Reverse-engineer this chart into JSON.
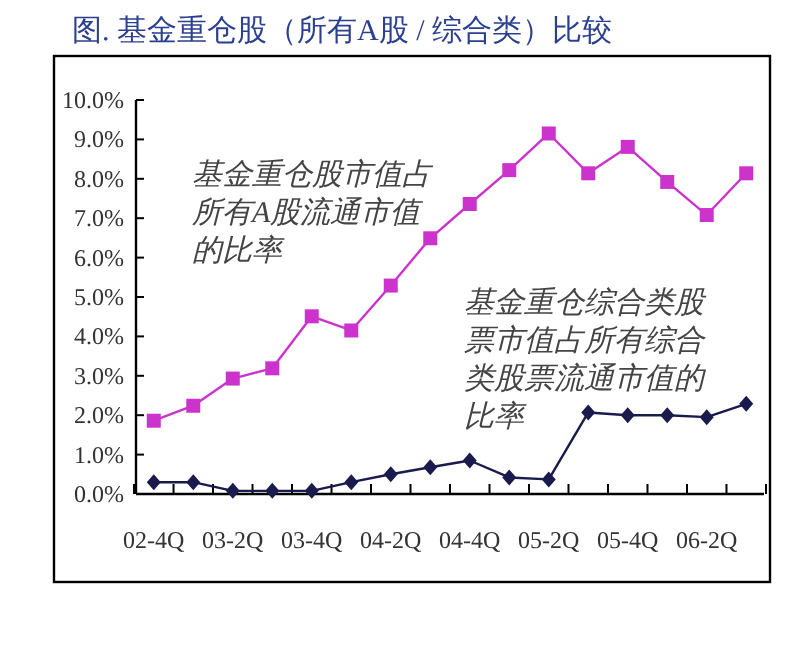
{
  "chart_data": {
    "type": "line",
    "title": "图. 基金重仓股（所有A股 / 综合类）比较",
    "categories": [
      "02-4Q",
      null,
      "03-2Q",
      null,
      "03-4Q",
      null,
      "04-2Q",
      null,
      "04-4Q",
      null,
      "05-2Q",
      null,
      "05-4Q",
      null,
      "06-2Q",
      null
    ],
    "series": [
      {
        "name": "基金重仓股市值占所有A股流通市值的比率",
        "color": "#cc33cc",
        "marker": "square",
        "values": [
          1.86,
          2.24,
          2.93,
          3.19,
          4.51,
          4.15,
          5.29,
          6.49,
          7.36,
          8.22,
          9.15,
          8.14,
          8.81,
          7.92,
          7.08,
          8.14
        ]
      },
      {
        "name": "基金重仓综合类股票市值占所有综合类股票流通市值的比率",
        "color": "#1a1a4d",
        "marker": "diamond",
        "values": [
          0.3,
          0.3,
          0.08,
          0.08,
          0.08,
          0.3,
          0.5,
          0.68,
          0.85,
          0.42,
          0.37,
          2.07,
          2.0,
          2.0,
          1.95,
          2.29
        ]
      }
    ],
    "ylim": [
      0,
      10
    ],
    "yticks": [
      {
        "value": 0,
        "label": "0.0%"
      },
      {
        "value": 1,
        "label": "1.0%"
      },
      {
        "value": 2,
        "label": "2.0%"
      },
      {
        "value": 3,
        "label": "3.0%"
      },
      {
        "value": 4,
        "label": "4.0%"
      },
      {
        "value": 5,
        "label": "5.0%"
      },
      {
        "value": 6,
        "label": "6.0%"
      },
      {
        "value": 7,
        "label": "7.0%"
      },
      {
        "value": 8,
        "label": "8.0%"
      },
      {
        "value": 9,
        "label": "9.0%"
      },
      {
        "value": 10,
        "label": "10.0%"
      }
    ],
    "grid": false,
    "line_style": "solid"
  }
}
